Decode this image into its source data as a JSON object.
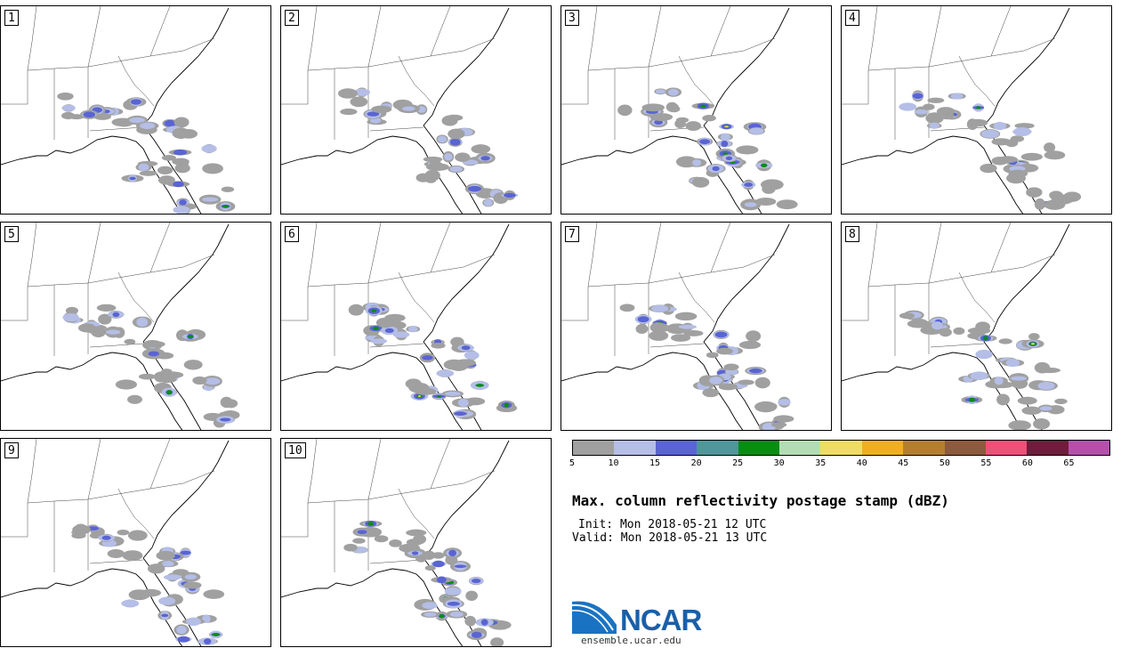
{
  "panels": [
    {
      "label": "1"
    },
    {
      "label": "2"
    },
    {
      "label": "3"
    },
    {
      "label": "4"
    },
    {
      "label": "5"
    },
    {
      "label": "6"
    },
    {
      "label": "7"
    },
    {
      "label": "8"
    },
    {
      "label": "9"
    },
    {
      "label": "10"
    }
  ],
  "colorbar": {
    "colors": [
      "#a0a0a0",
      "#b4bee6",
      "#5a64d2",
      "#50969a",
      "#0a8c14",
      "#b4dcb4",
      "#f0dc64",
      "#eeb01e",
      "#b47e32",
      "#8c5a3c",
      "#ee5078",
      "#6e1e3c",
      "#b450aa"
    ],
    "ticks": [
      "5",
      "10",
      "15",
      "20",
      "25",
      "30",
      "35",
      "40",
      "45",
      "50",
      "55",
      "60",
      "65"
    ]
  },
  "title": "Max. column reflectivity postage stamp (dBZ)",
  "init": "Init: Mon 2018-05-21 12 UTC",
  "valid": "Valid: Mon 2018-05-21 13 UTC",
  "logo": {
    "text": "NCAR",
    "site": "ensemble.ucar.edu"
  }
}
